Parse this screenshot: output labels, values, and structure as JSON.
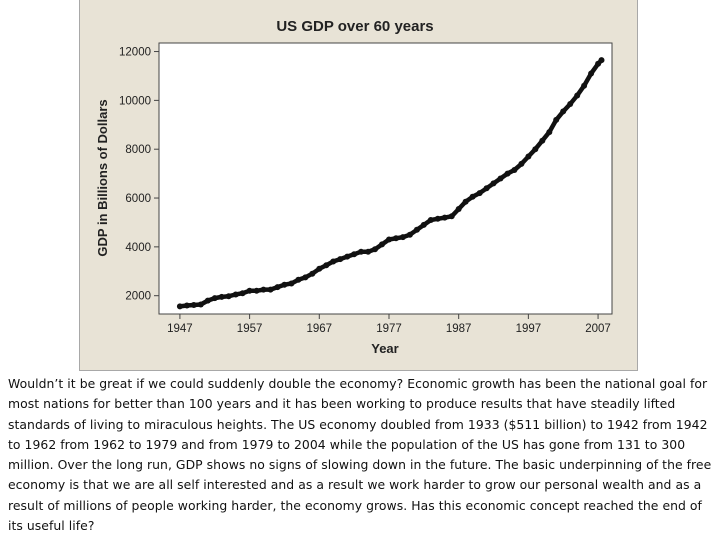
{
  "chart_data": {
    "type": "line",
    "title": "US GDP over 60 years",
    "xlabel": "Year",
    "ylabel": "GDP in Billions of Dollars",
    "xlim": [
      1944,
      2009
    ],
    "ylim": [
      1250,
      12350
    ],
    "x_ticks": [
      1947,
      1957,
      1967,
      1977,
      1987,
      1997,
      2007
    ],
    "y_ticks": [
      2000,
      4000,
      6000,
      8000,
      10000,
      12000
    ],
    "grid": false,
    "series": [
      {
        "x": [
          1947,
          1948,
          1949,
          1950,
          1951,
          1952,
          1953,
          1954,
          1955,
          1956,
          1957,
          1958,
          1959,
          1960,
          1961,
          1962,
          1963,
          1964,
          1965,
          1966,
          1967,
          1968,
          1969,
          1970,
          1971,
          1972,
          1973,
          1974,
          1975,
          1976,
          1977,
          1978,
          1979,
          1980,
          1981,
          1982,
          1983,
          1984,
          1985,
          1986,
          1987,
          1988,
          1989,
          1990,
          1991,
          1992,
          1993,
          1994,
          1995,
          1996,
          1997,
          1998,
          1999,
          2000,
          2001,
          2002,
          2003,
          2004,
          2005,
          2006,
          2007,
          2007.5
        ],
        "y": [
          1560,
          1600,
          1620,
          1640,
          1800,
          1900,
          1950,
          1980,
          2050,
          2100,
          2200,
          2200,
          2250,
          2250,
          2350,
          2450,
          2500,
          2650,
          2750,
          2900,
          3100,
          3250,
          3400,
          3500,
          3600,
          3700,
          3800,
          3800,
          3900,
          4100,
          4300,
          4350,
          4400,
          4500,
          4700,
          4900,
          5100,
          5150,
          5200,
          5250,
          5550,
          5850,
          6050,
          6200,
          6400,
          6600,
          6800,
          7000,
          7150,
          7400,
          7700,
          8000,
          8350,
          8700,
          9200,
          9550,
          9850,
          10200,
          10600,
          11100,
          11500,
          11650
        ]
      }
    ]
  },
  "caption": "Wouldn’t it be great if we could suddenly double the economy? Economic growth has been the national goal for most nations for better than 100 years and it has been working to produce results that have steadily lifted standards of living to miraculous heights.  The US economy doubled from 1933 ($511 billion) to 1942 from 1942 to 1962 from 1962 to 1979 and from 1979 to 2004 while the population of the US has gone from 131 to 300 million.  Over the long run, GDP shows no signs of slowing down in the future.  The basic underpinning of the free economy is that we are all self interested and as a result we work harder to grow our personal wealth and as a result of millions of people working harder, the economy grows.  Has this economic concept reached the end of its useful life?"
}
